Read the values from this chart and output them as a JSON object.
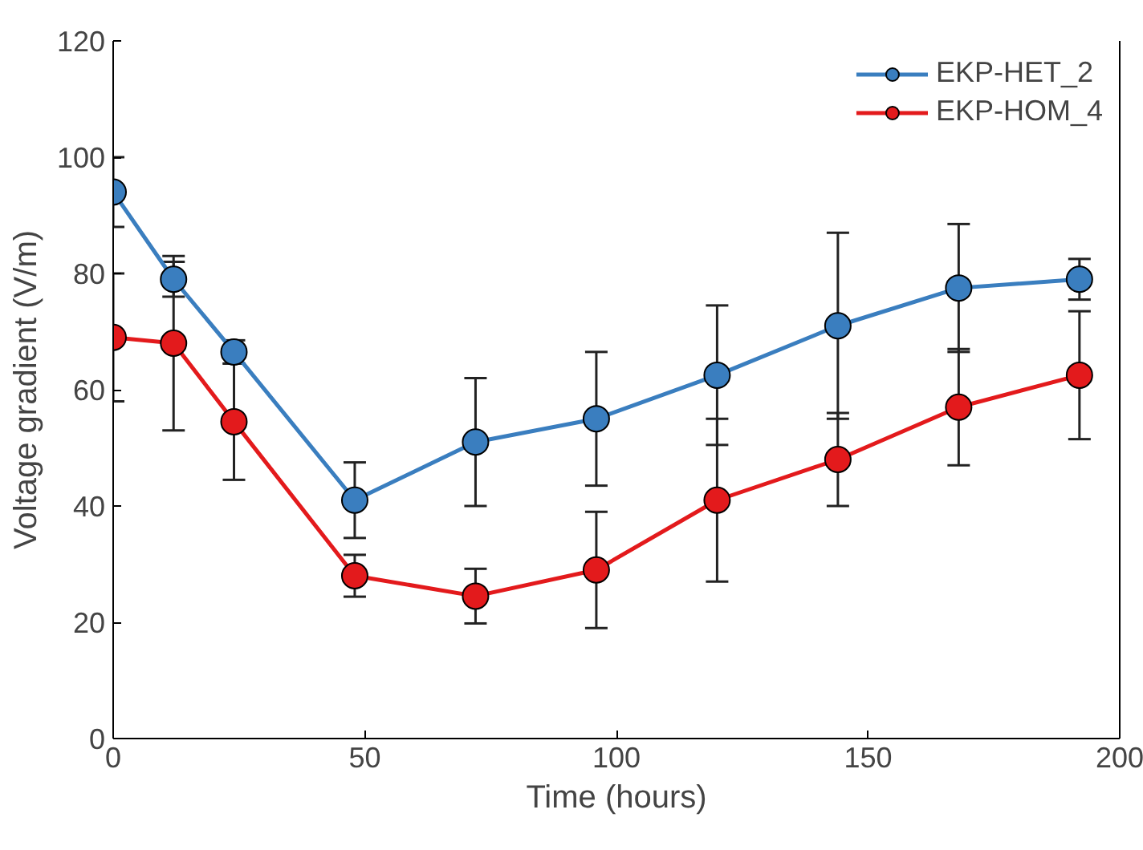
{
  "chart_data": {
    "type": "line",
    "xlabel": "Time (hours)",
    "ylabel": "Voltage gradient (V/m)",
    "x": [
      0,
      12,
      24,
      48,
      72,
      96,
      120,
      144,
      168,
      192
    ],
    "series": [
      {
        "name": "EKP-HET_2",
        "color": "#3a7ebf",
        "values": [
          94,
          79,
          66.5,
          41,
          51,
          55,
          62.5,
          71,
          77.5,
          79
        ],
        "errors": [
          6,
          3,
          2,
          6.5,
          11,
          11.5,
          12,
          16,
          11,
          3.5
        ]
      },
      {
        "name": "EKP-HOM_4",
        "color": "#e31a1c",
        "values": [
          69,
          68,
          54.5,
          28,
          24.5,
          29,
          41,
          48,
          57,
          62.5
        ],
        "errors": [
          11,
          15,
          10,
          3.6,
          4.7,
          10,
          14,
          8,
          10,
          11
        ]
      }
    ],
    "xlim": [
      0,
      200
    ],
    "xticks": [
      0,
      50,
      100,
      150,
      200
    ],
    "ylim": [
      0,
      120
    ],
    "yticks": [
      0,
      20,
      40,
      60,
      80,
      100,
      120
    ],
    "grid": false,
    "legend": "top right",
    "marker": "circle",
    "line_style": "solid"
  }
}
